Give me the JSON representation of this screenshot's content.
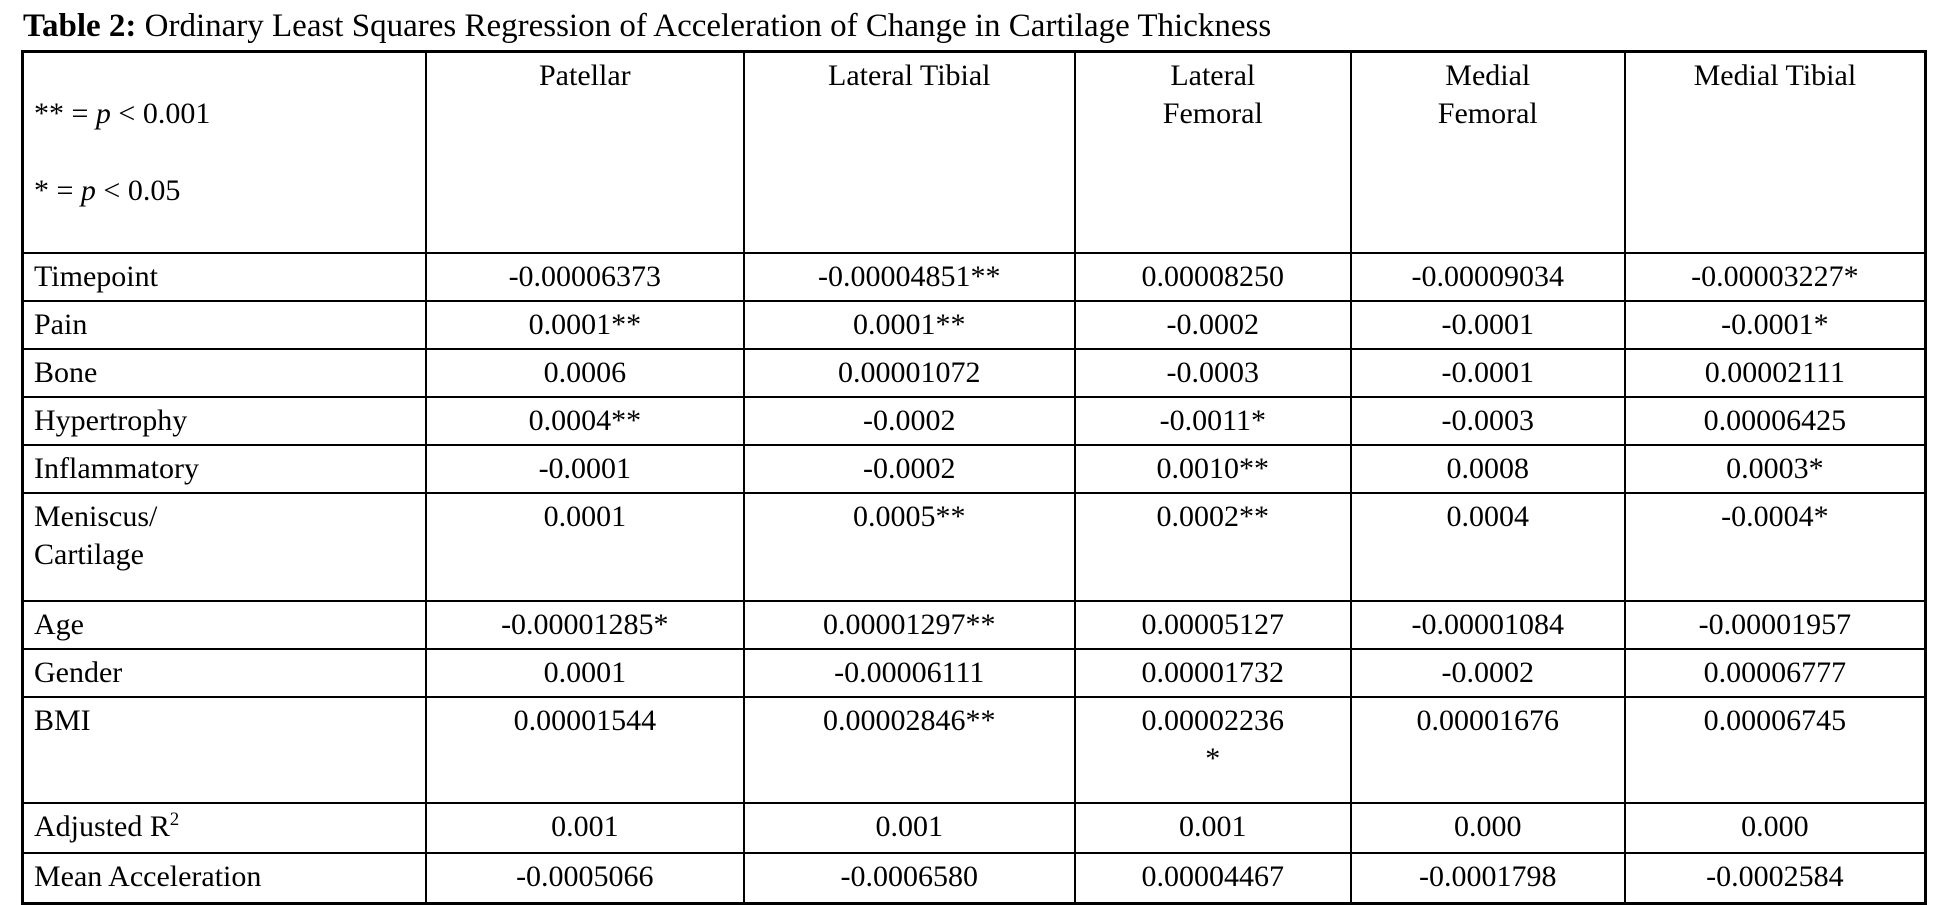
{
  "caption": {
    "prefix": "Table 2:",
    "rest": " Ordinary Least Squares Regression of Acceleration of Change in Cartilage Thickness"
  },
  "legend": {
    "line1": {
      "pre": "** = ",
      "var": "p",
      "post": " < 0.001"
    },
    "line2": {
      "pre": "* = ",
      "var": "p",
      "post": " < 0.05"
    }
  },
  "table": {
    "columns": [
      "Patellar",
      "Lateral Tibial",
      "Lateral\nFemoral",
      "Medial\nFemoral",
      "Medial Tibial"
    ],
    "rows": [
      {
        "label": "Timepoint",
        "values": [
          "-0.00006373",
          "-0.00004851**",
          "0.00008250",
          "-0.00009034",
          "-0.00003227*"
        ]
      },
      {
        "label": "Pain",
        "values": [
          "0.0001**",
          "0.0001**",
          "-0.0002",
          "-0.0001",
          "-0.0001*"
        ]
      },
      {
        "label": "Bone",
        "values": [
          "0.0006",
          "0.00001072",
          "-0.0003",
          "-0.0001",
          "0.00002111"
        ]
      },
      {
        "label": "Hypertrophy",
        "values": [
          "0.0004**",
          "-0.0002",
          "-0.0011*",
          "-0.0003",
          "0.00006425"
        ]
      },
      {
        "label": "Inflammatory",
        "values": [
          "-0.0001",
          "-0.0002",
          "0.0010**",
          "0.0008",
          "0.0003*"
        ]
      },
      {
        "label": "Meniscus/\nCartilage",
        "values": [
          "0.0001",
          "0.0005**",
          "0.0002**",
          "0.0004",
          "-0.0004*"
        ]
      },
      {
        "label": "Age",
        "values": [
          "-0.00001285*",
          "0.00001297**",
          "0.00005127",
          "-0.00001084",
          "-0.00001957"
        ]
      },
      {
        "label": "Gender",
        "values": [
          "0.0001",
          "-0.00006111",
          "0.00001732",
          "-0.0002",
          "0.00006777"
        ]
      },
      {
        "label": "BMI",
        "values": [
          "0.00001544",
          "0.00002846**",
          "0.00002236\n*",
          "0.00001676",
          "0.00006745"
        ]
      },
      {
        "label": "Adjusted R",
        "label_sup": "2",
        "values": [
          "0.001",
          "0.001",
          "0.001",
          "0.000",
          "0.000"
        ]
      },
      {
        "label": "Mean Acceleration",
        "values": [
          "-0.0005066",
          "-0.0006580",
          "0.00004467",
          "-0.0001798",
          "-0.0002584"
        ]
      }
    ]
  }
}
